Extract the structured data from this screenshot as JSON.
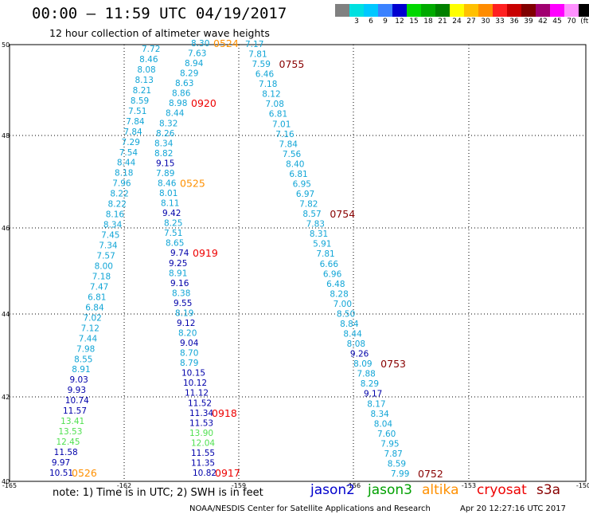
{
  "header": {
    "title": "00:00 – 11:59 UTC 04/19/2017",
    "subtitle": "12 hour collection of altimeter wave heights"
  },
  "legend": {
    "colors": [
      "#808080",
      "#00e0e0",
      "#00c8ff",
      "#3b82ff",
      "#0000d0",
      "#00d800",
      "#00aa00",
      "#008000",
      "#ffff00",
      "#ffc000",
      "#ff8c00",
      "#ff2020",
      "#c80000",
      "#800000",
      "#a00070",
      "#ff00ff",
      "#ff90ff",
      "#000000"
    ],
    "labels": [
      "3",
      "6",
      "9",
      "12",
      "15",
      "18",
      "21",
      "24",
      "27",
      "30",
      "33",
      "36",
      "39",
      "42",
      "45",
      "70",
      "(ft)"
    ]
  },
  "axes": {
    "lat_labels": [
      "50",
      "48",
      "46",
      "44",
      "42",
      "40"
    ],
    "lon_labels": [
      "-165",
      "-162",
      "-159",
      "-156",
      "-153",
      "-150"
    ]
  },
  "color_key": {
    "cyan": "#11a5d6",
    "blue": "#0000aa",
    "green": "#50e050",
    "orange": "#ff9000",
    "red": "#ee0000",
    "darkred": "#880000"
  },
  "tracks": [
    {
      "name": "track-0526",
      "time": "0526",
      "time_color": "orange",
      "values": [
        [
          "7.72",
          "cyan"
        ],
        [
          "8.46",
          "cyan"
        ],
        [
          "8.08",
          "cyan"
        ],
        [
          "8.13",
          "cyan"
        ],
        [
          "8.21",
          "cyan"
        ],
        [
          "8.59",
          "cyan"
        ],
        [
          "7.51",
          "cyan"
        ],
        [
          "7.84",
          "cyan"
        ],
        [
          "7.84",
          "cyan"
        ],
        [
          "7.29",
          "cyan"
        ],
        [
          "7.54",
          "cyan"
        ],
        [
          "8.44",
          "cyan"
        ],
        [
          "8.18",
          "cyan"
        ],
        [
          "7.96",
          "cyan"
        ],
        [
          "8.22",
          "cyan"
        ],
        [
          "8.22",
          "cyan"
        ],
        [
          "8.16",
          "cyan"
        ],
        [
          "8.34",
          "cyan"
        ],
        [
          "7.45",
          "cyan"
        ],
        [
          "7.34",
          "cyan"
        ],
        [
          "7.57",
          "cyan"
        ],
        [
          "8.00",
          "cyan"
        ],
        [
          "7.18",
          "cyan"
        ],
        [
          "7.47",
          "cyan"
        ],
        [
          "6.81",
          "cyan"
        ],
        [
          "6.84",
          "cyan"
        ],
        [
          "7.02",
          "cyan"
        ],
        [
          "7.12",
          "cyan"
        ],
        [
          "7.44",
          "cyan"
        ],
        [
          "7.98",
          "cyan"
        ],
        [
          "8.55",
          "cyan"
        ],
        [
          "8.91",
          "cyan"
        ],
        [
          "9.03",
          "blue"
        ],
        [
          "9.93",
          "blue"
        ],
        [
          "10.74",
          "blue"
        ],
        [
          "11.57",
          "blue"
        ],
        [
          "13.41",
          "green"
        ],
        [
          "13.53",
          "green"
        ],
        [
          "12.45",
          "green"
        ],
        [
          "11.58",
          "blue"
        ],
        [
          "9.97",
          "blue"
        ],
        [
          "10.51",
          "blue"
        ]
      ]
    },
    {
      "name": "track-0524-0920-0525-0919-0918-0917",
      "time": "0524",
      "time_color": "orange",
      "values": [
        [
          "8.30",
          "cyan"
        ],
        [
          "7.63",
          "cyan"
        ],
        [
          "8.94",
          "cyan"
        ],
        [
          "8.29",
          "cyan"
        ],
        [
          "8.63",
          "cyan"
        ],
        [
          "8.86",
          "cyan"
        ],
        [
          "8.98",
          "cyan"
        ],
        [
          "8.44",
          "cyan"
        ],
        [
          "8.32",
          "cyan"
        ],
        [
          "8.26",
          "cyan"
        ],
        [
          "8.34",
          "cyan"
        ],
        [
          "8.82",
          "cyan"
        ],
        [
          "9.15",
          "blue"
        ],
        [
          "7.89",
          "cyan"
        ],
        [
          "8.46",
          "cyan"
        ],
        [
          "8.01",
          "cyan"
        ],
        [
          "8.11",
          "cyan"
        ],
        [
          "9.42",
          "blue"
        ],
        [
          "8.25",
          "cyan"
        ],
        [
          "7.51",
          "cyan"
        ],
        [
          "8.65",
          "cyan"
        ],
        [
          "9.74",
          "blue"
        ],
        [
          "9.25",
          "blue"
        ],
        [
          "8.91",
          "cyan"
        ],
        [
          "9.16",
          "blue"
        ],
        [
          "8.38",
          "cyan"
        ],
        [
          "9.55",
          "blue"
        ],
        [
          "8.19",
          "cyan"
        ],
        [
          "9.12",
          "blue"
        ],
        [
          "8.20",
          "cyan"
        ],
        [
          "9.04",
          "blue"
        ],
        [
          "8.70",
          "cyan"
        ],
        [
          "8.79",
          "cyan"
        ],
        [
          "10.15",
          "blue"
        ],
        [
          "10.12",
          "blue"
        ],
        [
          "11.12",
          "blue"
        ],
        [
          "11.52",
          "blue"
        ],
        [
          "11.34",
          "blue"
        ],
        [
          "11.53",
          "blue"
        ],
        [
          "13.90",
          "green"
        ],
        [
          "12.04",
          "green"
        ],
        [
          "11.55",
          "blue"
        ],
        [
          "11.35",
          "blue"
        ],
        [
          "10.82",
          "blue"
        ]
      ],
      "times": [
        [
          "0524",
          "orange",
          0
        ],
        [
          "0920",
          "red",
          6
        ],
        [
          "0525",
          "orange",
          14
        ],
        [
          "0919",
          "red",
          21
        ],
        [
          "0918",
          "red",
          37
        ],
        [
          "0917",
          "red",
          43
        ]
      ]
    },
    {
      "name": "track-0755-0754-0753-0752",
      "time": "0755",
      "time_color": "darkred",
      "values": [
        [
          "7.17",
          "cyan"
        ],
        [
          "7.81",
          "cyan"
        ],
        [
          "7.59",
          "cyan"
        ],
        [
          "6.46",
          "cyan"
        ],
        [
          "7.18",
          "cyan"
        ],
        [
          "8.12",
          "cyan"
        ],
        [
          "7.08",
          "cyan"
        ],
        [
          "6.81",
          "cyan"
        ],
        [
          "7.01",
          "cyan"
        ],
        [
          "7.16",
          "cyan"
        ],
        [
          "7.84",
          "cyan"
        ],
        [
          "7.56",
          "cyan"
        ],
        [
          "8.40",
          "cyan"
        ],
        [
          "6.81",
          "cyan"
        ],
        [
          "6.95",
          "cyan"
        ],
        [
          "6.97",
          "cyan"
        ],
        [
          "7.82",
          "cyan"
        ],
        [
          "8.57",
          "cyan"
        ],
        [
          "7.83",
          "cyan"
        ],
        [
          "8.31",
          "cyan"
        ],
        [
          "5.91",
          "cyan"
        ],
        [
          "7.81",
          "cyan"
        ],
        [
          "6.66",
          "cyan"
        ],
        [
          "6.96",
          "cyan"
        ],
        [
          "6.48",
          "cyan"
        ],
        [
          "8.28",
          "cyan"
        ],
        [
          "7.00",
          "cyan"
        ],
        [
          "8.50",
          "cyan"
        ],
        [
          "8.84",
          "cyan"
        ],
        [
          "8.44",
          "cyan"
        ],
        [
          "8.08",
          "cyan"
        ],
        [
          "9.26",
          "blue"
        ],
        [
          "8.09",
          "cyan"
        ],
        [
          "7.88",
          "cyan"
        ],
        [
          "8.29",
          "cyan"
        ],
        [
          "9.17",
          "blue"
        ],
        [
          "8.17",
          "cyan"
        ],
        [
          "8.34",
          "cyan"
        ],
        [
          "8.04",
          "cyan"
        ],
        [
          "7.60",
          "cyan"
        ],
        [
          "7.95",
          "cyan"
        ],
        [
          "7.87",
          "cyan"
        ],
        [
          "8.59",
          "cyan"
        ],
        [
          "7.99",
          "cyan"
        ]
      ],
      "times": [
        [
          "0755",
          "darkred",
          2
        ],
        [
          "0754",
          "darkred",
          17
        ],
        [
          "0753",
          "darkred",
          32
        ],
        [
          "0752",
          "darkred",
          43
        ]
      ]
    }
  ],
  "footer": {
    "note": "note: 1) Time is in UTC; 2) SWH is in feet",
    "sat_jason2": "jason2",
    "sat_jason3": "jason3",
    "sat_altika": "altika",
    "sat_cryosat": "cryosat",
    "sat_s3a": "s3a",
    "jason2_color": "#0000cc",
    "jason3_color": "#00a000",
    "altika_color": "#ff9000",
    "cryosat_color": "#ee0000",
    "s3a_color": "#880000",
    "credit": "NOAA/NESDIS Center for Satellite Applications and Research",
    "stamp": "Apr 20 12:27:16 UTC 2017"
  }
}
